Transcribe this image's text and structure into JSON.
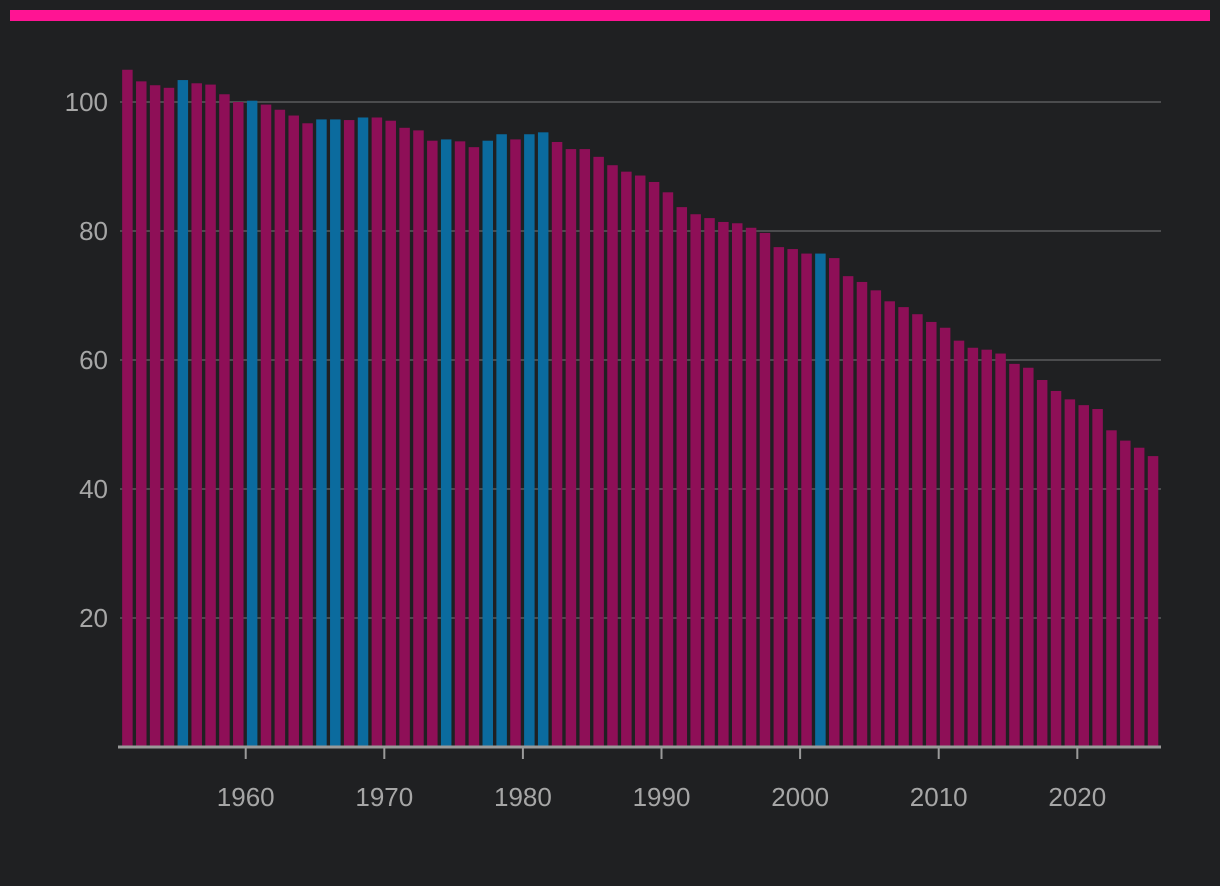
{
  "colors": {
    "background": "#1f2022",
    "accent_rule": "#ff1493",
    "bar_default": "#8e0f57",
    "bar_highlight": "#0b6b9e",
    "gridline": "#5a5a5c",
    "axis": "#9a9a9a",
    "tick_text": "#a6a6a6"
  },
  "chart_data": {
    "type": "bar",
    "title": "",
    "xlabel": "",
    "ylabel": "",
    "legend": "none",
    "grid": "horizontal",
    "ylim": [
      0,
      108
    ],
    "yticks": [
      20,
      40,
      60,
      80,
      100
    ],
    "xticks": [
      1960,
      1970,
      1980,
      1990,
      2000,
      2010,
      2020
    ],
    "x_start": 1951,
    "x_end": 2025,
    "highlight_years": [
      1955,
      1960,
      1965,
      1966,
      1968,
      1974,
      1977,
      1978,
      1980,
      1981,
      2001
    ],
    "values": [
      105,
      103.2,
      102.6,
      102.2,
      103.4,
      102.9,
      102.7,
      101.2,
      100.0,
      100.2,
      99.6,
      98.8,
      97.9,
      96.7,
      97.3,
      97.3,
      97.2,
      97.6,
      97.6,
      97.1,
      96.0,
      95.6,
      94.0,
      94.2,
      93.9,
      93.0,
      94.0,
      95.0,
      94.2,
      95.0,
      95.3,
      93.8,
      92.7,
      92.7,
      91.5,
      90.2,
      89.2,
      88.6,
      87.6,
      86.0,
      83.7,
      82.6,
      82.0,
      81.4,
      81.2,
      80.5,
      79.7,
      77.5,
      77.2,
      76.5,
      76.5,
      75.8,
      73.0,
      72.1,
      70.8,
      69.1,
      68.2,
      67.1,
      65.9,
      65.0,
      63.0,
      61.9,
      61.6,
      61.0,
      59.4,
      58.8,
      56.9,
      55.2,
      53.9,
      53.0,
      52.4,
      49.1,
      47.5,
      46.4,
      45.1
    ]
  }
}
